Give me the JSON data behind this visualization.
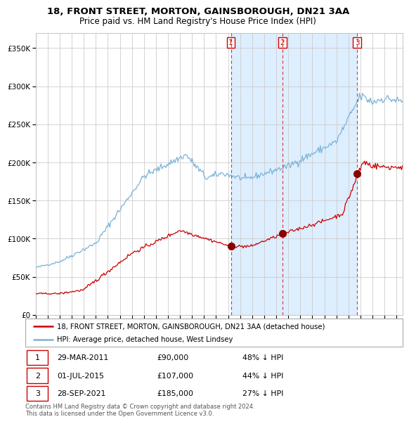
{
  "title": "18, FRONT STREET, MORTON, GAINSBOROUGH, DN21 3AA",
  "subtitle": "Price paid vs. HM Land Registry's House Price Index (HPI)",
  "title_fontsize": 9.5,
  "subtitle_fontsize": 8.5,
  "ylim": [
    0,
    370000
  ],
  "yticks": [
    0,
    50000,
    100000,
    150000,
    200000,
    250000,
    300000,
    350000
  ],
  "ytick_labels": [
    "£0",
    "£50K",
    "£100K",
    "£150K",
    "£200K",
    "£250K",
    "£300K",
    "£350K"
  ],
  "hpi_color": "#7ab3d9",
  "price_color": "#cc0000",
  "sale_dot_color": "#880000",
  "bg_color": "#ffffff",
  "shaded_region_color": "#ddeeff",
  "grid_color": "#cccccc",
  "sale_dates": [
    2011.23,
    2015.5,
    2021.74
  ],
  "sale_prices": [
    90000,
    107000,
    185000
  ],
  "sale_labels": [
    "1",
    "2",
    "3"
  ],
  "legend_line1": "18, FRONT STREET, MORTON, GAINSBOROUGH, DN21 3AA (detached house)",
  "legend_line2": "HPI: Average price, detached house, West Lindsey",
  "table_data": [
    [
      "1",
      "29-MAR-2011",
      "£90,000",
      "48% ↓ HPI"
    ],
    [
      "2",
      "01-JUL-2015",
      "£107,000",
      "44% ↓ HPI"
    ],
    [
      "3",
      "28-SEP-2021",
      "£185,000",
      "27% ↓ HPI"
    ]
  ],
  "footer": "Contains HM Land Registry data © Crown copyright and database right 2024.\nThis data is licensed under the Open Government Licence v3.0.",
  "xmin": 1995,
  "xmax": 2025.5
}
